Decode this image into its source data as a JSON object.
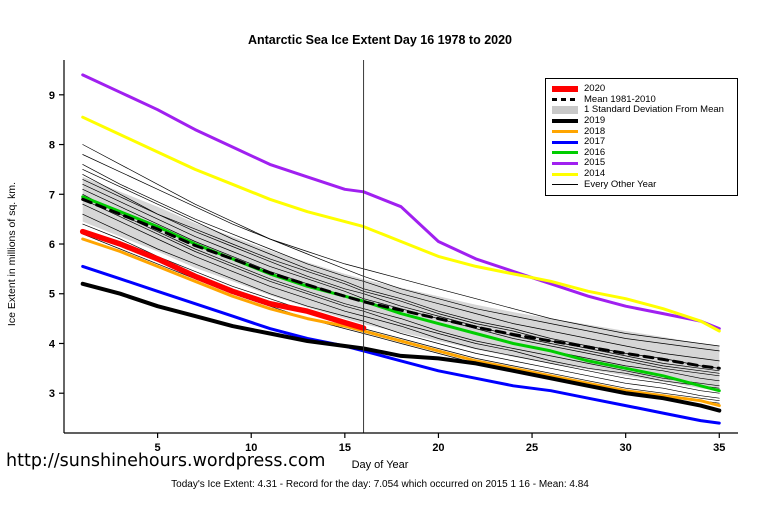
{
  "footer": {
    "watermark": "http://sunshinehours.wordpress.com",
    "caption": "Today's Ice Extent: 4.31 - Record for the day: 7.054 which occurred on 2015 1 16 - Mean: 4.84"
  },
  "legend": {
    "items": [
      {
        "label": "2020",
        "color": "#FF0000",
        "lw": 6,
        "dash": false
      },
      {
        "label": "Mean 1981-2010",
        "color": "#000000",
        "lw": 3,
        "dash": true
      },
      {
        "label": "1 Standard Deviation From Mean",
        "color": "#C8C8C8",
        "lw": 8,
        "dash": false
      },
      {
        "label": "2019",
        "color": "#000000",
        "lw": 4,
        "dash": false
      },
      {
        "label": "2018",
        "color": "#FFA500",
        "lw": 3,
        "dash": false
      },
      {
        "label": "2017",
        "color": "#0000FF",
        "lw": 3,
        "dash": false
      },
      {
        "label": "2016",
        "color": "#00CD00",
        "lw": 3,
        "dash": false
      },
      {
        "label": "2015",
        "color": "#A020F0",
        "lw": 3,
        "dash": false
      },
      {
        "label": "2014",
        "color": "#FFFF00",
        "lw": 3,
        "dash": false
      },
      {
        "label": "Every Other Year",
        "color": "#000000",
        "lw": 1,
        "dash": false
      }
    ]
  },
  "chart_data": {
    "type": "line",
    "title": "Antarctic Sea Ice Extent Day 16 1978 to 2020",
    "xlabel": "Day of Year",
    "ylabel": "Ice Extent in millions of sq. km.",
    "xlim": [
      1,
      35
    ],
    "ylim": [
      2.3,
      9.6
    ],
    "xticks": [
      5,
      10,
      15,
      20,
      25,
      30,
      35
    ],
    "yticks": [
      3,
      4,
      5,
      6,
      7,
      8,
      9
    ],
    "grid": false,
    "legend_position": "topright",
    "vline_x": 16,
    "today_extent": 4.31,
    "record_for_day": 7.054,
    "mean_for_day": 4.84,
    "x": [
      1,
      3,
      5,
      7,
      9,
      11,
      13,
      15,
      16,
      18,
      20,
      22,
      24,
      26,
      28,
      30,
      32,
      34,
      35
    ],
    "band": {
      "name": "1 Standard Deviation From Mean",
      "upper": [
        7.35,
        7.05,
        6.75,
        6.42,
        6.15,
        5.87,
        5.63,
        5.4,
        5.29,
        5.12,
        4.95,
        4.78,
        4.63,
        4.5,
        4.38,
        4.25,
        4.13,
        4.0,
        3.95
      ],
      "lower": [
        6.45,
        6.15,
        5.85,
        5.52,
        5.25,
        4.97,
        4.73,
        4.5,
        4.39,
        4.22,
        4.05,
        3.88,
        3.73,
        3.6,
        3.48,
        3.35,
        3.23,
        3.1,
        3.05
      ]
    },
    "series": [
      {
        "name": "2015",
        "color": "#A020F0",
        "width": 3,
        "values": [
          9.4,
          9.05,
          8.7,
          8.3,
          7.95,
          7.6,
          7.35,
          7.1,
          7.05,
          6.75,
          6.05,
          5.7,
          5.45,
          5.2,
          4.95,
          4.75,
          4.6,
          4.45,
          4.3
        ]
      },
      {
        "name": "2014",
        "color": "#FFFF00",
        "width": 3,
        "values": [
          8.55,
          8.2,
          7.85,
          7.5,
          7.2,
          6.9,
          6.65,
          6.45,
          6.35,
          6.05,
          5.75,
          5.55,
          5.4,
          5.25,
          5.05,
          4.9,
          4.7,
          4.45,
          4.25
        ]
      },
      {
        "name": "2016",
        "color": "#00CD00",
        "width": 3,
        "values": [
          6.95,
          6.65,
          6.35,
          6.0,
          5.7,
          5.4,
          5.15,
          4.95,
          4.85,
          4.6,
          4.4,
          4.2,
          4.0,
          3.85,
          3.65,
          3.5,
          3.35,
          3.15,
          3.05
        ]
      },
      {
        "name": "2018",
        "color": "#FFA500",
        "width": 3,
        "values": [
          6.1,
          5.85,
          5.55,
          5.25,
          4.95,
          4.7,
          4.5,
          4.35,
          4.25,
          4.05,
          3.85,
          3.65,
          3.5,
          3.35,
          3.2,
          3.05,
          2.95,
          2.85,
          2.75
        ]
      },
      {
        "name": "2017",
        "color": "#0000FF",
        "width": 3,
        "values": [
          5.55,
          5.3,
          5.05,
          4.8,
          4.55,
          4.3,
          4.1,
          3.95,
          3.85,
          3.65,
          3.45,
          3.3,
          3.15,
          3.05,
          2.9,
          2.75,
          2.6,
          2.45,
          2.4
        ]
      },
      {
        "name": "2019",
        "color": "#000000",
        "width": 4,
        "values": [
          5.2,
          5.0,
          4.75,
          4.55,
          4.35,
          4.2,
          4.05,
          3.95,
          3.9,
          3.75,
          3.7,
          3.6,
          3.45,
          3.3,
          3.15,
          3.0,
          2.9,
          2.75,
          2.65
        ]
      },
      {
        "name": "Mean 1981-2010",
        "color": "#000000",
        "width": 3,
        "dash": "9 6",
        "values": [
          6.9,
          6.6,
          6.3,
          5.97,
          5.7,
          5.42,
          5.18,
          4.95,
          4.84,
          4.67,
          4.5,
          4.33,
          4.18,
          4.05,
          3.93,
          3.8,
          3.68,
          3.55,
          3.5
        ]
      },
      {
        "name": "2020",
        "color": "#FF0000",
        "width": 5.5,
        "x": [
          1,
          3,
          5,
          7,
          9,
          11,
          13,
          15,
          16
        ],
        "values": [
          6.25,
          6.0,
          5.7,
          5.35,
          5.05,
          4.8,
          4.65,
          4.42,
          4.31
        ]
      }
    ],
    "every_other_year": [
      [
        8.0,
        7.6,
        7.2,
        6.8,
        6.45,
        6.1,
        5.8,
        5.5,
        5.35,
        5.1,
        4.9,
        4.7,
        4.55,
        4.4,
        4.25,
        4.1,
        4.0,
        3.9,
        3.85
      ],
      [
        7.8,
        7.45,
        7.1,
        6.75,
        6.4,
        6.1,
        5.85,
        5.6,
        5.5,
        5.3,
        5.1,
        4.9,
        4.7,
        4.5,
        4.35,
        4.2,
        4.1,
        4.0,
        3.95
      ],
      [
        7.6,
        7.2,
        6.85,
        6.5,
        6.2,
        5.9,
        5.6,
        5.35,
        5.25,
        5.0,
        4.8,
        4.6,
        4.4,
        4.25,
        4.1,
        3.95,
        3.8,
        3.7,
        3.65
      ],
      [
        7.5,
        7.15,
        6.8,
        6.45,
        6.1,
        5.8,
        5.5,
        5.25,
        5.1,
        4.9,
        4.65,
        4.45,
        4.3,
        4.1,
        3.95,
        3.8,
        3.7,
        3.55,
        3.5
      ],
      [
        7.4,
        7.0,
        6.6,
        6.25,
        5.95,
        5.65,
        5.35,
        5.1,
        5.0,
        4.75,
        4.55,
        4.35,
        4.15,
        4.0,
        3.85,
        3.7,
        3.55,
        3.45,
        3.4
      ],
      [
        7.3,
        6.95,
        6.6,
        6.3,
        6.0,
        5.7,
        5.45,
        5.2,
        5.05,
        4.85,
        4.6,
        4.4,
        4.25,
        4.05,
        3.9,
        3.75,
        3.6,
        3.5,
        3.45
      ],
      [
        7.2,
        6.85,
        6.5,
        6.15,
        5.85,
        5.55,
        5.3,
        5.05,
        4.9,
        4.7,
        4.5,
        4.3,
        4.1,
        3.95,
        3.8,
        3.65,
        3.5,
        3.4,
        3.35
      ],
      [
        7.1,
        6.75,
        6.4,
        6.05,
        5.75,
        5.45,
        5.2,
        4.95,
        4.85,
        4.6,
        4.4,
        4.2,
        4.0,
        3.85,
        3.7,
        3.55,
        3.45,
        3.3,
        3.25
      ],
      [
        7.0,
        6.6,
        6.25,
        5.9,
        5.6,
        5.3,
        5.05,
        4.8,
        4.7,
        4.5,
        4.25,
        4.05,
        3.9,
        3.75,
        3.6,
        3.45,
        3.3,
        3.2,
        3.15
      ],
      [
        6.9,
        6.55,
        6.2,
        5.85,
        5.55,
        5.25,
        5.0,
        4.75,
        4.65,
        4.4,
        4.2,
        4.0,
        3.85,
        3.65,
        3.5,
        3.4,
        3.25,
        3.15,
        3.1
      ],
      [
        6.8,
        6.45,
        6.1,
        5.75,
        5.45,
        5.15,
        4.9,
        4.65,
        4.55,
        4.35,
        4.1,
        3.9,
        3.75,
        3.6,
        3.45,
        3.3,
        3.2,
        3.05,
        3.0
      ],
      [
        6.6,
        6.25,
        5.9,
        5.6,
        5.3,
        5.0,
        4.75,
        4.55,
        4.45,
        4.2,
        4.0,
        3.8,
        3.65,
        3.5,
        3.35,
        3.2,
        3.1,
        2.95,
        2.9
      ],
      [
        6.4,
        6.1,
        5.75,
        5.45,
        5.15,
        4.9,
        4.65,
        4.4,
        4.3,
        4.1,
        3.9,
        3.7,
        3.55,
        3.4,
        3.25,
        3.1,
        3.0,
        2.9,
        2.85
      ],
      [
        6.2,
        5.9,
        5.6,
        5.3,
        5.0,
        4.75,
        4.5,
        4.3,
        4.2,
        4.0,
        3.8,
        3.6,
        3.45,
        3.3,
        3.2,
        3.05,
        2.95,
        2.85,
        2.8
      ]
    ]
  }
}
